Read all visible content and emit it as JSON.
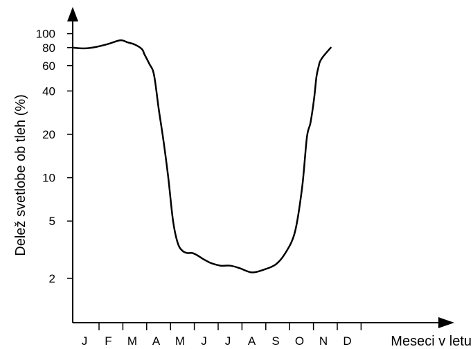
{
  "chart_data": {
    "type": "line",
    "title": "",
    "xlabel": "Meseci v letu",
    "ylabel": "Delež svetlobe ob tleh (%)",
    "y_scale": "log",
    "y_ticks": [
      2,
      5,
      10,
      20,
      40,
      60,
      80,
      100
    ],
    "y_tick_labels": [
      "2",
      "5",
      "10",
      "20",
      "40",
      "60",
      "80",
      "100"
    ],
    "categories": [
      "J",
      "F",
      "M",
      "A",
      "M",
      "J",
      "J",
      "A",
      "S",
      "O",
      "N",
      "D"
    ],
    "grid": false,
    "legend": "none",
    "line_color": "#000000",
    "series": [
      {
        "x": [
          0.0,
          0.5,
          1.0,
          1.5,
          2.0,
          2.3,
          2.6,
          2.9,
          3.0,
          3.2,
          3.4,
          3.6,
          3.8,
          4.0,
          4.2,
          4.4,
          4.6,
          4.8,
          5.0,
          5.2,
          5.5,
          5.8,
          6.2,
          6.6,
          7.0,
          7.5,
          8.0,
          8.5,
          8.9,
          9.3,
          9.6,
          9.8,
          9.95,
          10.1,
          10.2,
          10.3,
          10.35,
          10.5,
          10.8
        ],
        "values": [
          80,
          79,
          81,
          85,
          90,
          87,
          84,
          78,
          72,
          62,
          52,
          30,
          18,
          10,
          5,
          3.5,
          3.1,
          3.0,
          3.0,
          2.9,
          2.7,
          2.55,
          2.45,
          2.45,
          2.35,
          2.2,
          2.3,
          2.5,
          3.0,
          4.2,
          8.5,
          19,
          24,
          35,
          50,
          60,
          64,
          70,
          80
        ]
      }
    ]
  }
}
